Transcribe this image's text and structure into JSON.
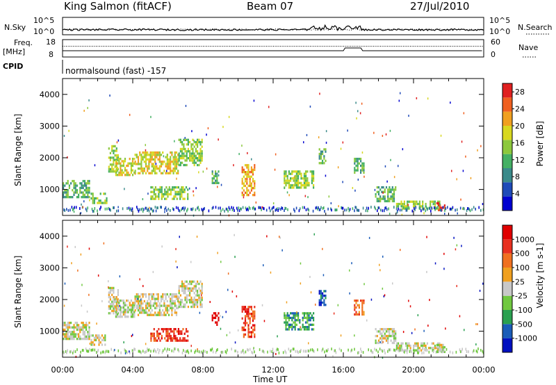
{
  "header": {
    "site": "King Salmon (fitACF)",
    "beam": "Beam 07",
    "date": "27/Jul/2010"
  },
  "labels": {
    "nsky": "N.Sky",
    "nsearch": "N.Search",
    "freq_line1": "Freq.",
    "freq_line2": "[MHz]",
    "nave": "Nave",
    "cpid": "CPID",
    "program": "normalsound (fast) -157",
    "noise_tick_hi": "10^5",
    "noise_tick_lo": "10^0",
    "freq_tick_hi": "18",
    "freq_tick_lo": "8",
    "nave_tick_hi": "60",
    "nave_tick_lo": "0"
  },
  "chart_data": [
    {
      "type": "heatmap",
      "name": "power",
      "xlabel": "Time UT",
      "ylabel": "Slant Range [km]",
      "x_ticks": [
        "00:00",
        "04:00",
        "08:00",
        "12:00",
        "16:00",
        "20:00",
        "00:00"
      ],
      "xlim": [
        0,
        24
      ],
      "y_ticks": [
        1000,
        2000,
        3000,
        4000
      ],
      "ylim": [
        180,
        4500
      ],
      "colorbar": {
        "label": "Power [dB]",
        "ticks": [
          4,
          8,
          12,
          16,
          20,
          24,
          28
        ],
        "range": [
          0,
          30
        ],
        "colors": [
          "#0000d0",
          "#1e4ab8",
          "#3a8a8a",
          "#44b064",
          "#8cc83c",
          "#d8d820",
          "#f0a020",
          "#f06020",
          "#e02020"
        ]
      },
      "regions": [
        {
          "t0": 2.6,
          "t1": 3.2,
          "r0": 1500,
          "r1": 2400,
          "level": 14
        },
        {
          "t0": 3.0,
          "t1": 4.1,
          "r0": 1400,
          "r1": 2000,
          "level": 18
        },
        {
          "t0": 4.1,
          "t1": 6.6,
          "r0": 1500,
          "r1": 2200,
          "level": 18
        },
        {
          "t0": 6.6,
          "t1": 8.0,
          "r0": 1700,
          "r1": 2600,
          "level": 14
        },
        {
          "t0": 5.0,
          "t1": 7.2,
          "r0": 650,
          "r1": 1100,
          "level": 16
        },
        {
          "t0": 0.0,
          "t1": 1.6,
          "r0": 700,
          "r1": 1300,
          "level": 10
        },
        {
          "t0": 1.6,
          "t1": 2.6,
          "r0": 550,
          "r1": 900,
          "level": 14
        },
        {
          "t0": 8.5,
          "t1": 8.9,
          "r0": 1200,
          "r1": 1600,
          "level": 10
        },
        {
          "t0": 10.2,
          "t1": 11.0,
          "r0": 800,
          "r1": 1800,
          "level": 24
        },
        {
          "t0": 12.6,
          "t1": 14.3,
          "r0": 1000,
          "r1": 1600,
          "level": 14
        },
        {
          "t0": 14.6,
          "t1": 15.0,
          "r0": 1800,
          "r1": 2300,
          "level": 10
        },
        {
          "t0": 16.6,
          "t1": 17.2,
          "r0": 1500,
          "r1": 2000,
          "level": 10
        },
        {
          "t0": 17.8,
          "t1": 19.0,
          "r0": 600,
          "r1": 1100,
          "level": 12
        },
        {
          "t0": 19.0,
          "t1": 21.5,
          "r0": 350,
          "r1": 650,
          "level": 14
        },
        {
          "t0": 21.3,
          "t1": 21.8,
          "r0": 300,
          "r1": 600,
          "level": 28
        }
      ]
    },
    {
      "type": "heatmap",
      "name": "velocity",
      "xlabel": "Time UT",
      "ylabel": "Slant Range [km]",
      "x_ticks": [
        "00:00",
        "04:00",
        "08:00",
        "12:00",
        "16:00",
        "20:00",
        "00:00"
      ],
      "xlim": [
        0,
        24
      ],
      "y_ticks": [
        1000,
        2000,
        3000,
        4000
      ],
      "ylim": [
        180,
        4500
      ],
      "colorbar": {
        "label": "Velocity [m s-1]",
        "tick_labels": [
          "1000",
          "500",
          "100",
          "25",
          "-25",
          "-100",
          "-500",
          "-1000"
        ],
        "colors": [
          "#0010c0",
          "#1a5cb8",
          "#2aa050",
          "#70c840",
          "#c8c8c8",
          "#f0a020",
          "#f07020",
          "#e83020",
          "#e00000"
        ]
      },
      "regions": [
        {
          "t0": 2.6,
          "t1": 3.2,
          "r0": 1500,
          "r1": 2400,
          "level": 4
        },
        {
          "t0": 3.0,
          "t1": 4.1,
          "r0": 1400,
          "r1": 2000,
          "level": 4
        },
        {
          "t0": 4.1,
          "t1": 6.6,
          "r0": 1500,
          "r1": 2200,
          "level": 4
        },
        {
          "t0": 6.6,
          "t1": 8.0,
          "r0": 1700,
          "r1": 2600,
          "level": 4
        },
        {
          "t0": 5.0,
          "t1": 7.2,
          "r0": 650,
          "r1": 1100,
          "level": 7
        },
        {
          "t0": 0.0,
          "t1": 1.6,
          "r0": 700,
          "r1": 1300,
          "level": 4
        },
        {
          "t0": 1.6,
          "t1": 2.6,
          "r0": 550,
          "r1": 900,
          "level": 4
        },
        {
          "t0": 8.5,
          "t1": 8.9,
          "r0": 1200,
          "r1": 1600,
          "level": 8
        },
        {
          "t0": 10.2,
          "t1": 11.0,
          "r0": 800,
          "r1": 1800,
          "level": 7
        },
        {
          "t0": 12.6,
          "t1": 14.3,
          "r0": 1000,
          "r1": 1600,
          "level": 2
        },
        {
          "t0": 14.6,
          "t1": 15.0,
          "r0": 1800,
          "r1": 2300,
          "level": 1
        },
        {
          "t0": 16.6,
          "t1": 17.2,
          "r0": 1500,
          "r1": 2000,
          "level": 6
        },
        {
          "t0": 17.8,
          "t1": 19.0,
          "r0": 600,
          "r1": 1100,
          "level": 4
        },
        {
          "t0": 19.0,
          "t1": 21.5,
          "r0": 350,
          "r1": 650,
          "level": 4
        },
        {
          "t0": 21.3,
          "t1": 21.8,
          "r0": 300,
          "r1": 600,
          "level": 4
        }
      ]
    }
  ]
}
